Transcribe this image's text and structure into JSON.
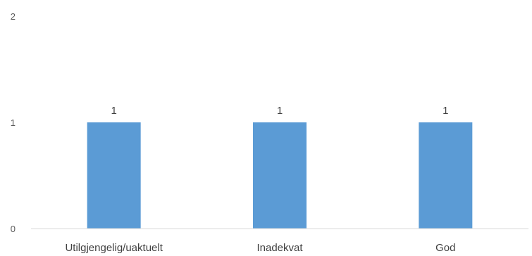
{
  "colors": {
    "bar": "#5B9BD5",
    "axis": "#d9d9d9",
    "text": "#404040",
    "tick_text": "#595959",
    "background": "#ffffff"
  },
  "chart_data": {
    "type": "bar",
    "categories": [
      "Utilgjengelig/uaktuelt",
      "Inadekvat",
      "God"
    ],
    "values": [
      1,
      1,
      1
    ],
    "data_labels": [
      "1",
      "1",
      "1"
    ],
    "y_ticks": [
      "0",
      "1",
      "2"
    ],
    "ylim": [
      0,
      2
    ],
    "grid": false,
    "legend": "none",
    "title": "",
    "xlabel": "",
    "ylabel": ""
  }
}
